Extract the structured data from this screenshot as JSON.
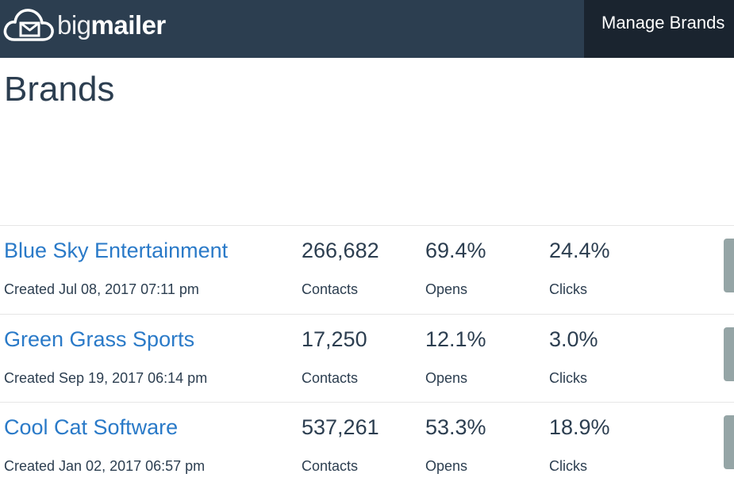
{
  "app": {
    "logo_light": "big",
    "logo_bold": "mailer",
    "logo_icon": "cloud-mail-icon",
    "nav_active": "Manage Brands"
  },
  "page": {
    "title": "Brands"
  },
  "brands": [
    {
      "name": "Blue Sky Entertainment",
      "created": "Created Jul 08, 2017 07:11 pm",
      "contacts": "266,682",
      "opens": "69.4%",
      "clicks": "24.4%"
    },
    {
      "name": "Green Grass Sports",
      "created": "Created Sep 19, 2017 06:14 pm",
      "contacts": "17,250",
      "opens": "12.1%",
      "clicks": "3.0%"
    },
    {
      "name": "Cool Cat Software",
      "created": "Created Jan 02, 2017 06:57 pm",
      "contacts": "537,261",
      "opens": "53.3%",
      "clicks": "18.9%"
    }
  ],
  "labels": {
    "contacts": "Contacts",
    "opens": "Opens",
    "clicks": "Clicks"
  },
  "colors": {
    "header": "#2c3e50",
    "nav_active": "#1a242f",
    "link": "#2a7ac8",
    "button": "#95a5a6"
  }
}
